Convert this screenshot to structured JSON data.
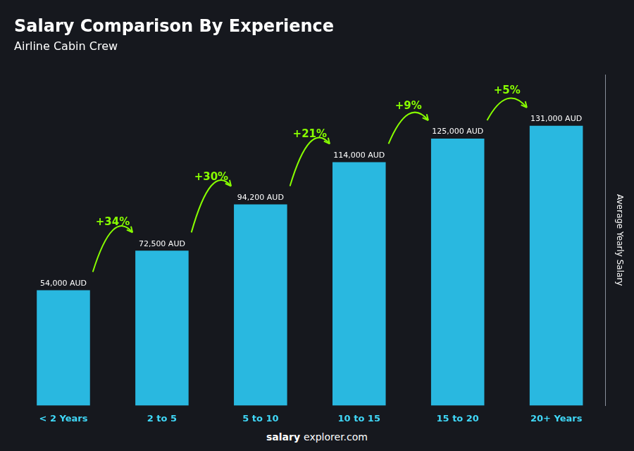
{
  "chart_data": {
    "type": "bar",
    "title": "Salary Comparison By Experience",
    "subtitle": "Airline Cabin Crew",
    "ylabel": "Average Yearly Salary",
    "categories": [
      "< 2 Years",
      "2 to 5",
      "5 to 10",
      "10 to 15",
      "15 to 20",
      "20+ Years"
    ],
    "values": [
      54000,
      72500,
      94200,
      114000,
      125000,
      131000
    ],
    "value_labels": [
      "54,000 AUD",
      "72,500 AUD",
      "94,200 AUD",
      "114,000 AUD",
      "125,000 AUD",
      "131,000 AUD"
    ],
    "data_labels": true,
    "color": "#29B8E0",
    "ylim": [
      0,
      155000
    ],
    "grid": false,
    "tick_labels": "x",
    "annotations": [
      {
        "text": "+34%",
        "from": "< 2 Years",
        "to": "2 to 5",
        "color": "#88FF00"
      },
      {
        "text": "+30%",
        "from": "2 to 5",
        "to": "5 to 10",
        "color": "#88FF00"
      },
      {
        "text": "+21%",
        "from": "5 to 10",
        "to": "10 to 15",
        "color": "#88FF00"
      },
      {
        "text": "+9%",
        "from": "10 to 15",
        "to": "15 to 20",
        "color": "#88FF00"
      },
      {
        "text": "+5%",
        "from": "15 to 20",
        "to": "20+ Years",
        "color": "#88FF00"
      }
    ],
    "footer": [
      "salary",
      "explorer.com"
    ]
  }
}
